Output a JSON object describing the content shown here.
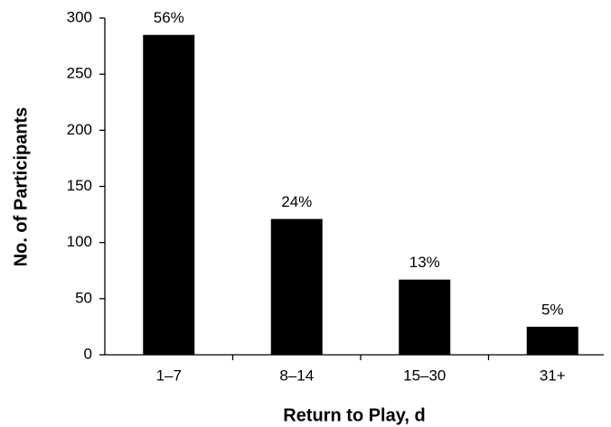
{
  "chart_data": {
    "type": "bar",
    "categories": [
      "1–7",
      "8–14",
      "15–30",
      "31+"
    ],
    "values": [
      285,
      121,
      67,
      25
    ],
    "annotations": [
      "56%",
      "24%",
      "13%",
      "5%"
    ],
    "color": "#000000",
    "x_label": "Return to Play, d",
    "y_label": "No. of Participants",
    "ylim": [
      0,
      300
    ],
    "yticks": [
      0,
      50,
      100,
      150,
      200,
      250,
      300
    ],
    "grid": false
  }
}
